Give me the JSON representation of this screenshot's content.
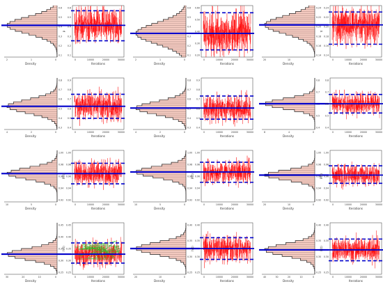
{
  "chart_data": {
    "type": "mcmc_diagnostics",
    "grid": false,
    "layout": {
      "rows": 4,
      "columns": 6,
      "pair": "histogram + trace"
    },
    "colors": {
      "histogram_fill": "#f3c9bf",
      "histogram_outline": "#222222",
      "trace": "#ff0000",
      "trace_highlight": "#27c027",
      "mean_line": "#0000cc",
      "interval_line": "#0000cc",
      "axis": "#333333"
    },
    "axis_labels": {
      "histogram_x": "Density",
      "trace_x": "Iterations"
    },
    "panels": [
      {
        "row": 1,
        "col": 1,
        "hist": {
          "y_ticks": [
            "0.6",
            "0.5",
            "0.4",
            "0.3",
            "0.2",
            "0.1"
          ],
          "density_ticks": [
            "2",
            "1",
            "0"
          ],
          "mean": 0.42
        },
        "trace": {
          "y_ticks": [
            "0.6",
            "0.5",
            "0.4",
            "0.3",
            "0.2",
            "0.1"
          ],
          "x_ticks": [
            "0",
            "10000",
            "20000",
            "30000"
          ],
          "y_label": "p",
          "ylim": [
            0.05,
            0.65
          ],
          "mean": 0.42,
          "lower": 0.24,
          "upper": 0.59,
          "highlight": false
        }
      },
      {
        "row": 1,
        "col": 2,
        "hist": {
          "y_ticks": [
            "0.6",
            "0.5",
            "0.4",
            "0.3",
            "0.2",
            "0.1"
          ],
          "density_ticks": [
            "2",
            "1",
            "0"
          ],
          "mean": 0.38
        },
        "trace": {
          "y_ticks": [
            "0.60",
            "0.50",
            "0.40",
            "0.30",
            "0.20"
          ],
          "x_ticks": [
            "0",
            "10000",
            "20000",
            "30000"
          ],
          "y_label": "",
          "ylim": [
            0.15,
            0.65
          ],
          "mean": 0.38,
          "lower": 0.22,
          "upper": 0.58,
          "highlight": false
        }
      },
      {
        "row": 1,
        "col": 3,
        "hist": {
          "y_ticks": [
            "0.24",
            "0.22",
            "0.20",
            "0.18",
            "0.16",
            "0.14"
          ],
          "density_ticks": [
            "20",
            "10",
            "0"
          ],
          "mean": 0.205
        },
        "trace": {
          "y_ticks": [
            "0.24",
            "0.22",
            "0.20",
            "0.18",
            "0.16",
            "0.14"
          ],
          "x_ticks": [
            "0",
            "10000",
            "20000",
            "30000"
          ],
          "y_label": "π",
          "ylim": [
            0.13,
            0.25
          ],
          "mean": 0.205,
          "lower": 0.16,
          "upper": 0.235,
          "highlight": false
        }
      },
      {
        "row": 2,
        "col": 1,
        "hist": {
          "y_ticks": [
            "0.8",
            "0.7",
            "0.6",
            "0.5",
            "0.4",
            "0.3"
          ],
          "density_ticks": [
            "4",
            "2",
            "0"
          ],
          "mean": 0.62
        },
        "trace": {
          "y_ticks": [
            "0.9",
            "0.8",
            "0.7",
            "0.6",
            "0.5",
            "0.4"
          ],
          "x_ticks": [
            "0",
            "10000",
            "20000",
            "30000"
          ],
          "y_label": "",
          "ylim": [
            0.35,
            0.95
          ],
          "mean": 0.62,
          "lower": 0.48,
          "upper": 0.76,
          "highlight": false
        }
      },
      {
        "row": 2,
        "col": 2,
        "hist": {
          "y_ticks": [
            "0.8",
            "0.7",
            "0.6",
            "0.5",
            "0.4",
            "0.3"
          ],
          "density_ticks": [
            "4",
            "2",
            "0"
          ],
          "mean": 0.6
        },
        "trace": {
          "y_ticks": [
            "0.9",
            "0.8",
            "0.7",
            "0.6",
            "0.5",
            "0.4"
          ],
          "x_ticks": [
            "0",
            "10000",
            "20000",
            "30000"
          ],
          "y_label": "",
          "ylim": [
            0.35,
            0.95
          ],
          "mean": 0.6,
          "lower": 0.47,
          "upper": 0.74,
          "highlight": false
        }
      },
      {
        "row": 2,
        "col": 3,
        "hist": {
          "y_ticks": [
            "0.8",
            "0.7",
            "0.6",
            "0.5",
            "0.4"
          ],
          "density_ticks": [
            "8",
            "4",
            "0"
          ],
          "mean": 0.6
        },
        "trace": {
          "y_ticks": [
            "0.8",
            "0.7",
            "0.6",
            "0.5",
            "0.4"
          ],
          "x_ticks": [
            "0",
            "10000",
            "20000",
            "30000"
          ],
          "y_label": "",
          "ylim": [
            0.35,
            0.85
          ],
          "mean": 0.6,
          "lower": 0.51,
          "upper": 0.69,
          "highlight": false
        }
      },
      {
        "row": 3,
        "col": 1,
        "hist": {
          "y_ticks": [
            "1.00",
            "0.98",
            "0.96",
            "0.94",
            "0.92"
          ],
          "density_ticks": [
            "10",
            "5",
            "0"
          ],
          "mean": 0.965
        },
        "trace": {
          "y_ticks": [
            "1.00",
            "0.98",
            "0.96",
            "0.94",
            "0.92"
          ],
          "x_ticks": [
            "0",
            "10000",
            "20000",
            "30000"
          ],
          "y_label": "R(t)",
          "ylim": [
            0.91,
            1.01
          ],
          "mean": 0.965,
          "lower": 0.945,
          "upper": 0.985,
          "highlight": false
        }
      },
      {
        "row": 3,
        "col": 2,
        "hist": {
          "y_ticks": [
            "1.00",
            "0.98",
            "0.96",
            "0.94",
            "0.92"
          ],
          "density_ticks": [
            "10",
            "5",
            "0"
          ],
          "mean": 0.968
        },
        "trace": {
          "y_ticks": [
            "1.00",
            "0.98",
            "0.96",
            "0.94",
            "0.92"
          ],
          "x_ticks": [
            "0",
            "10000",
            "20000",
            "30000"
          ],
          "y_label": "R(t)",
          "ylim": [
            0.91,
            1.01
          ],
          "mean": 0.968,
          "lower": 0.948,
          "upper": 0.987,
          "highlight": false
        }
      },
      {
        "row": 3,
        "col": 3,
        "hist": {
          "y_ticks": [
            "1.00",
            "0.98",
            "0.96",
            "0.94",
            "0.92"
          ],
          "density_ticks": [
            "20",
            "10",
            "0"
          ],
          "mean": 0.962
        },
        "trace": {
          "y_ticks": [
            "1.00",
            "0.98",
            "0.96",
            "0.94",
            "0.92"
          ],
          "x_ticks": [
            "0",
            "10000",
            "20000",
            "30000"
          ],
          "y_label": "R(t)",
          "ylim": [
            0.91,
            1.01
          ],
          "mean": 0.962,
          "lower": 0.946,
          "upper": 0.98,
          "highlight": false
        }
      },
      {
        "row": 4,
        "col": 1,
        "hist": {
          "y_ticks": [
            "0.45",
            "0.40",
            "0.35",
            "0.30",
            "0.25"
          ],
          "density_ticks": [
            "30",
            "20",
            "10",
            "0"
          ],
          "mean": 0.33
        },
        "trace": {
          "y_ticks": [
            "0.45",
            "0.40",
            "0.35",
            "0.30",
            "0.25"
          ],
          "x_ticks": [
            "0",
            "10000",
            "20000",
            "30000"
          ],
          "y_label": "h(t)",
          "ylim": [
            0.24,
            0.47
          ],
          "mean": 0.33,
          "lower": 0.29,
          "upper": 0.38,
          "highlight": true
        }
      },
      {
        "row": 4,
        "col": 2,
        "hist": {
          "y_ticks": [
            "0.40",
            "0.35",
            "0.30",
            "0.25"
          ],
          "density_ticks": [
            "20",
            "10",
            "0"
          ],
          "mean": 0.325
        },
        "trace": {
          "y_ticks": [
            "0.40",
            "0.35",
            "0.30",
            "0.25"
          ],
          "x_ticks": [
            "0",
            "10000",
            "20000",
            "30000"
          ],
          "y_label": "h(t)",
          "ylim": [
            0.23,
            0.42
          ],
          "mean": 0.325,
          "lower": 0.285,
          "upper": 0.365,
          "highlight": false
        }
      },
      {
        "row": 4,
        "col": 3,
        "hist": {
          "y_ticks": [
            "0.40",
            "0.35",
            "0.30",
            "0.25"
          ],
          "density_ticks": [
            "40",
            "30",
            "20",
            "10",
            "0"
          ],
          "mean": 0.32
        },
        "trace": {
          "y_ticks": [
            "0.40",
            "0.35",
            "0.30",
            "0.25"
          ],
          "x_ticks": [
            "0",
            "10000",
            "20000",
            "30000"
          ],
          "y_label": "h(t)",
          "ylim": [
            0.23,
            0.42
          ],
          "mean": 0.32,
          "lower": 0.28,
          "upper": 0.36,
          "highlight": false
        }
      }
    ]
  }
}
